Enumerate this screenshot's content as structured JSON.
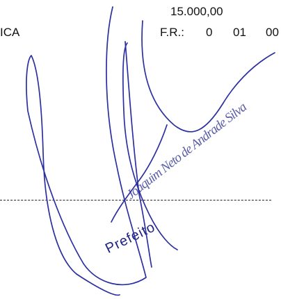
{
  "document": {
    "amount": "15.000,00",
    "label_left": "ICA",
    "fr_label": "F.R.:",
    "fr_values": [
      "0",
      "01",
      "00"
    ]
  },
  "stamp": {
    "name": "Joaquim Neto de Andrade Silva",
    "title": "Prefeito"
  },
  "colors": {
    "ink_blue": "#2b2fa0",
    "stamp_ink": "#2a2f8f",
    "text": "#111111"
  }
}
